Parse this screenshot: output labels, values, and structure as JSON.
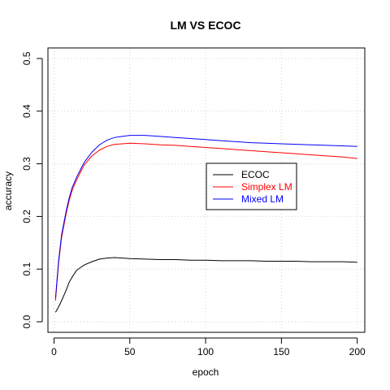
{
  "chart_data": {
    "type": "line",
    "title": "LM VS ECOC",
    "xlabel": "epoch",
    "ylabel": "accuracy",
    "xlim": [
      -4,
      205
    ],
    "ylim": [
      -0.02,
      0.52
    ],
    "x_ticks": [
      0,
      50,
      100,
      150,
      200
    ],
    "y_ticks": [
      0.0,
      0.1,
      0.2,
      0.3,
      0.4,
      0.5
    ],
    "x_tick_labels": [
      "0",
      "50",
      "100",
      "150",
      "200"
    ],
    "y_tick_labels": [
      "0.0",
      "0.1",
      "0.2",
      "0.3",
      "0.4",
      "0.5"
    ],
    "grid": true,
    "legend_position": "center-right",
    "series": [
      {
        "name": "ECOC",
        "color": "#000000",
        "x": [
          1,
          3,
          5,
          8,
          10,
          12,
          15,
          18,
          20,
          25,
          30,
          35,
          40,
          45,
          50,
          60,
          70,
          80,
          90,
          100,
          110,
          120,
          130,
          140,
          150,
          160,
          170,
          180,
          190,
          200
        ],
        "y": [
          0.018,
          0.028,
          0.04,
          0.06,
          0.075,
          0.085,
          0.098,
          0.104,
          0.108,
          0.114,
          0.119,
          0.121,
          0.122,
          0.121,
          0.12,
          0.119,
          0.118,
          0.118,
          0.117,
          0.117,
          0.116,
          0.116,
          0.116,
          0.115,
          0.115,
          0.115,
          0.114,
          0.114,
          0.114,
          0.113
        ]
      },
      {
        "name": "Simplex LM",
        "color": "#ff0000",
        "x": [
          1,
          3,
          5,
          8,
          10,
          12,
          15,
          18,
          20,
          25,
          30,
          35,
          40,
          45,
          50,
          60,
          70,
          80,
          90,
          100,
          110,
          120,
          130,
          140,
          150,
          160,
          170,
          180,
          190,
          200
        ],
        "y": [
          0.04,
          0.11,
          0.16,
          0.205,
          0.23,
          0.25,
          0.27,
          0.287,
          0.298,
          0.315,
          0.326,
          0.333,
          0.337,
          0.338,
          0.339,
          0.338,
          0.336,
          0.335,
          0.333,
          0.331,
          0.329,
          0.327,
          0.325,
          0.323,
          0.321,
          0.319,
          0.317,
          0.315,
          0.313,
          0.31
        ]
      },
      {
        "name": "Mixed LM",
        "color": "#0000ff",
        "x": [
          1,
          3,
          5,
          8,
          10,
          12,
          15,
          18,
          20,
          25,
          30,
          35,
          40,
          45,
          50,
          60,
          70,
          80,
          90,
          100,
          110,
          120,
          130,
          140,
          150,
          160,
          170,
          180,
          190,
          200
        ],
        "y": [
          0.045,
          0.115,
          0.165,
          0.21,
          0.235,
          0.255,
          0.275,
          0.292,
          0.303,
          0.322,
          0.336,
          0.345,
          0.35,
          0.352,
          0.354,
          0.354,
          0.352,
          0.35,
          0.348,
          0.346,
          0.344,
          0.342,
          0.34,
          0.339,
          0.338,
          0.337,
          0.336,
          0.335,
          0.334,
          0.333
        ]
      }
    ]
  }
}
